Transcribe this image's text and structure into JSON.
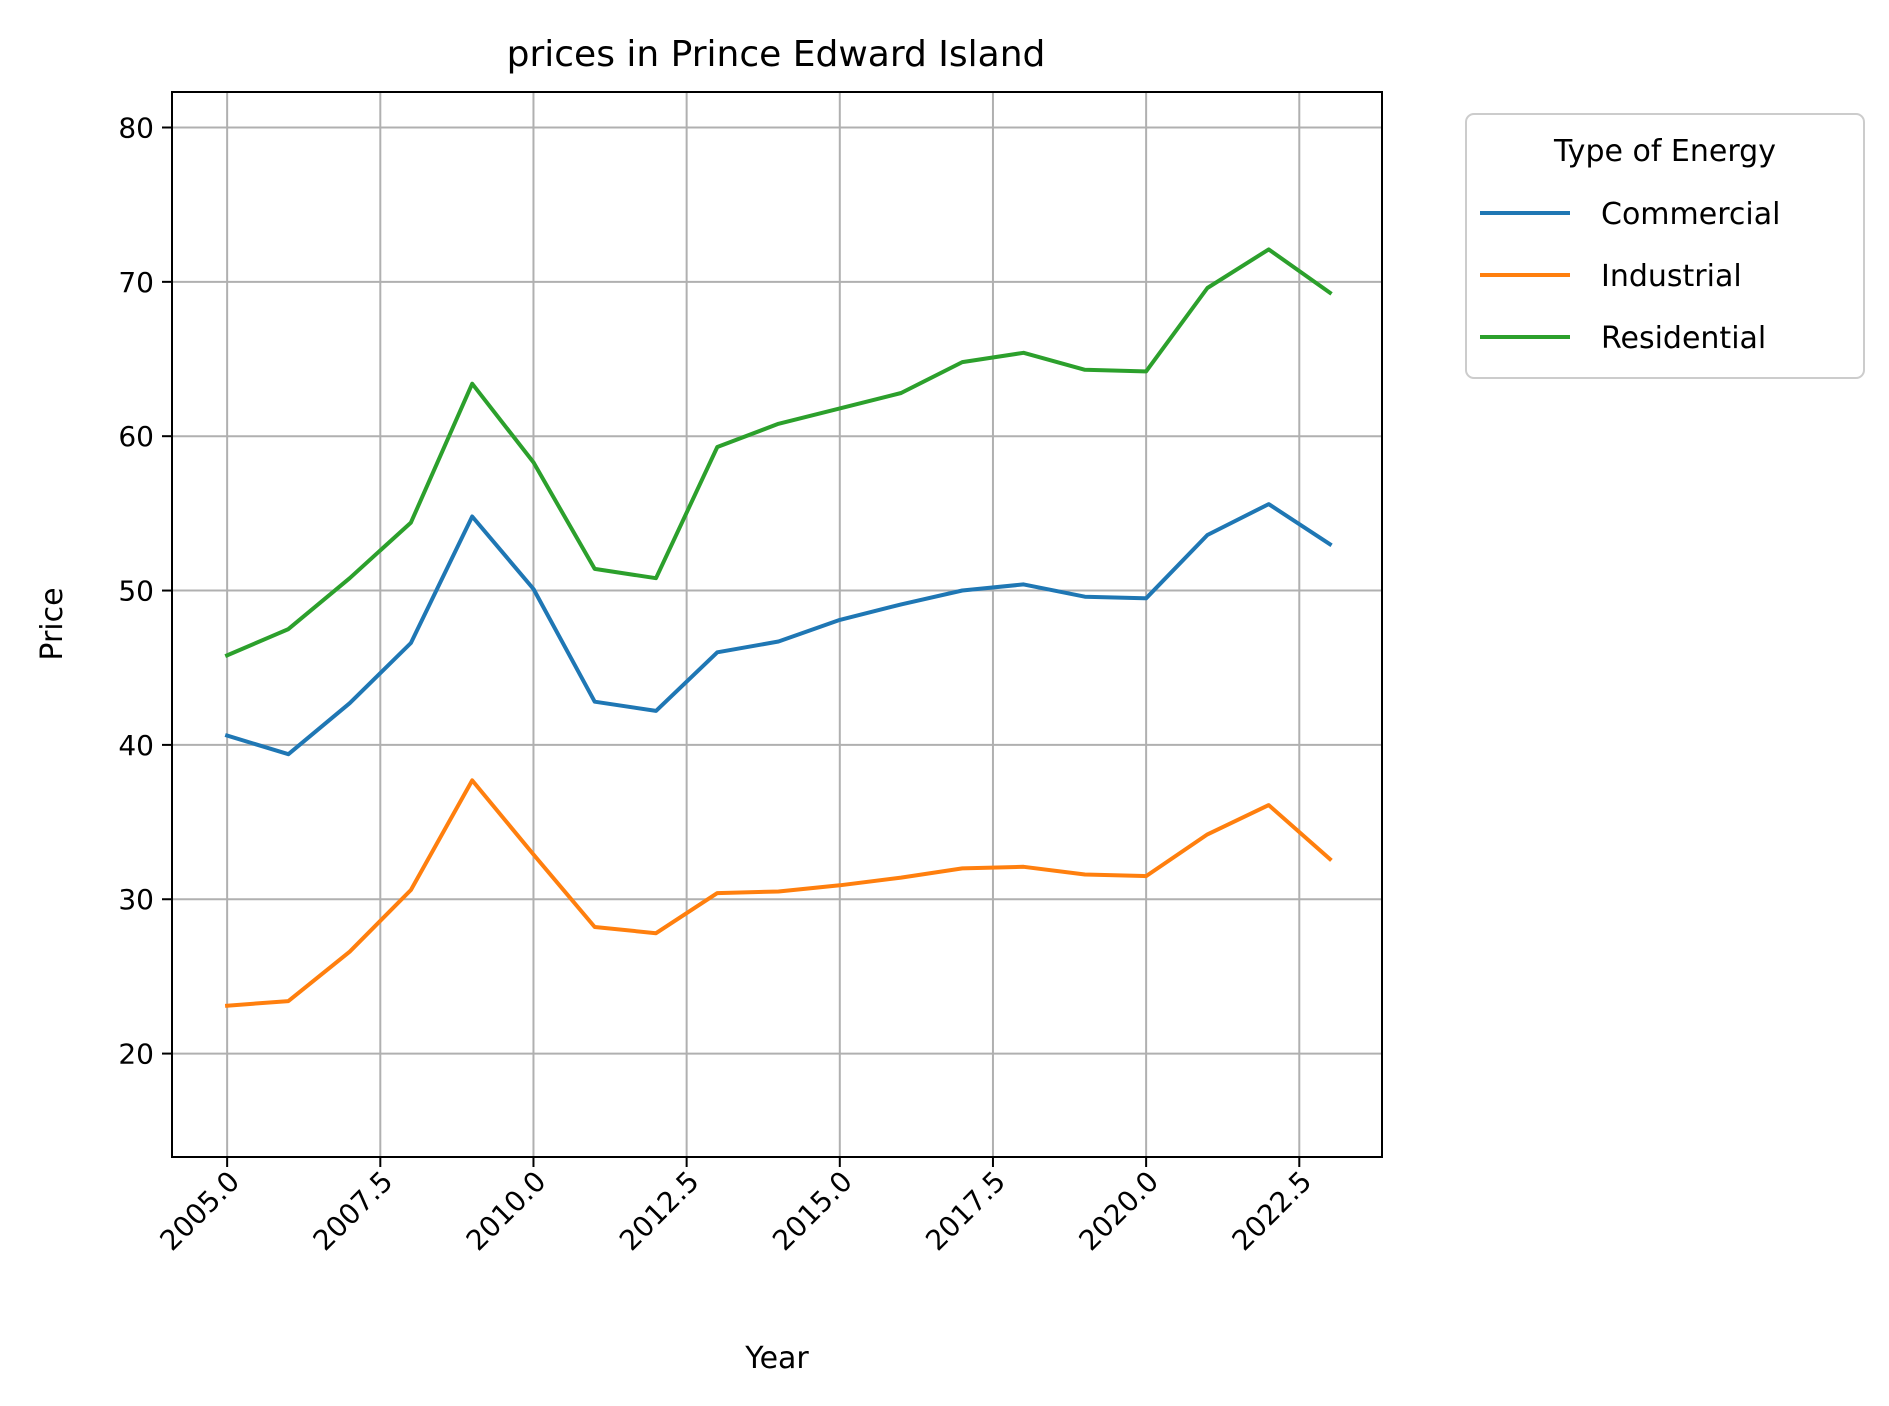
{
  "chart_data": {
    "type": "line",
    "title": "prices in Prince Edward Island",
    "xlabel": "Year",
    "ylabel": "Price",
    "xlim": [
      2004.1,
      2023.85
    ],
    "ylim": [
      13.3,
      82.3
    ],
    "x_ticks": [
      2005.0,
      2007.5,
      2010.0,
      2012.5,
      2015.0,
      2017.5,
      2020.0,
      2022.5
    ],
    "x_tick_labels": [
      "2005.0",
      "2007.5",
      "2010.0",
      "2012.5",
      "2015.0",
      "2017.5",
      "2020.0",
      "2022.5"
    ],
    "y_ticks": [
      20,
      30,
      40,
      50,
      60,
      70,
      80
    ],
    "y_tick_labels": [
      "20",
      "30",
      "40",
      "50",
      "60",
      "70",
      "80"
    ],
    "grid": true,
    "legend": {
      "title": "Type of Energy",
      "placement": "outside-top-right"
    },
    "x": [
      2005,
      2006,
      2007,
      2008,
      2009,
      2010,
      2011,
      2012,
      2013,
      2014,
      2015,
      2016,
      2017,
      2018,
      2019,
      2020,
      2021,
      2022,
      2023
    ],
    "series": [
      {
        "name": "Commercial",
        "color": "#1f77b4",
        "values": [
          40.6,
          39.4,
          42.7,
          46.6,
          54.8,
          50.1,
          42.8,
          42.2,
          46.0,
          46.7,
          48.1,
          49.1,
          50.0,
          50.4,
          49.6,
          49.5,
          53.6,
          55.6,
          53.0
        ]
      },
      {
        "name": "Industrial",
        "color": "#ff7f0e",
        "values": [
          23.1,
          23.4,
          26.6,
          30.6,
          37.7,
          32.9,
          28.2,
          27.8,
          30.4,
          30.5,
          30.9,
          31.4,
          32.0,
          32.1,
          31.6,
          31.5,
          34.2,
          36.1,
          32.6
        ]
      },
      {
        "name": "Residential",
        "color": "#2ca02c",
        "values": [
          45.8,
          47.5,
          50.8,
          54.4,
          63.4,
          58.3,
          51.4,
          50.8,
          59.3,
          60.8,
          61.8,
          62.8,
          64.8,
          65.4,
          64.3,
          64.2,
          69.6,
          72.1,
          69.3
        ]
      }
    ]
  }
}
